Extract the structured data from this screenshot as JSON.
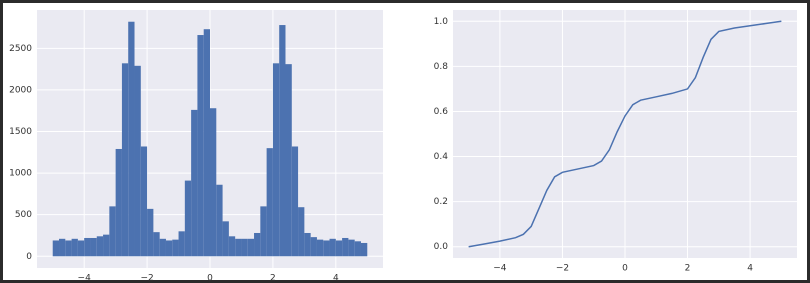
{
  "chart_data": [
    {
      "type": "histogram",
      "color": "#4c72b0",
      "grid": true,
      "bins": [
        -5,
        -4.8,
        -4.6,
        -4.4,
        -4.2,
        -4,
        -3.8,
        -3.6,
        -3.4,
        -3.2,
        -3,
        -2.8,
        -2.6,
        -2.4,
        -2.2,
        -2,
        -1.8,
        -1.6,
        -1.4,
        -1.2,
        -1,
        -0.8,
        -0.6,
        -0.4,
        -0.2,
        0,
        0.2,
        0.4,
        0.6,
        0.8,
        1,
        1.2,
        1.4,
        1.6,
        1.8,
        2,
        2.2,
        2.4,
        2.6,
        2.8,
        3,
        3.2,
        3.4,
        3.6,
        3.8,
        4,
        4.2,
        4.4,
        4.6,
        4.8,
        5
      ],
      "values": [
        190,
        210,
        190,
        210,
        190,
        220,
        220,
        240,
        260,
        600,
        1290,
        2320,
        2820,
        2290,
        1320,
        570,
        290,
        210,
        190,
        200,
        300,
        910,
        1760,
        2660,
        2730,
        1780,
        860,
        420,
        240,
        210,
        210,
        210,
        280,
        600,
        1300,
        2320,
        2780,
        2310,
        1320,
        590,
        280,
        230,
        200,
        190,
        210,
        190,
        220,
        200,
        180,
        160
      ],
      "xlim": [
        -5.5,
        5.5
      ],
      "ylim": [
        -141,
        2961
      ],
      "xticks": [
        {
          "value": -4,
          "label": "−4"
        },
        {
          "value": -2,
          "label": "−2"
        },
        0,
        2,
        4
      ],
      "yticks": [
        0,
        500,
        1000,
        1500,
        2000,
        2500
      ]
    },
    {
      "type": "line",
      "grid": true,
      "x": [
        -5,
        -4.5,
        -4,
        -3.5,
        -3.25,
        -3,
        -2.75,
        -2.5,
        -2.25,
        -2,
        -1.5,
        -1,
        -0.75,
        -0.5,
        -0.25,
        0,
        0.25,
        0.5,
        1,
        1.5,
        2,
        2.25,
        2.5,
        2.75,
        3,
        3.5,
        4,
        4.5,
        5
      ],
      "series": [
        {
          "color": "#4c72b0",
          "values": [
            0,
            0.012,
            0.025,
            0.04,
            0.055,
            0.09,
            0.17,
            0.25,
            0.31,
            0.33,
            0.345,
            0.36,
            0.38,
            0.43,
            0.51,
            0.58,
            0.63,
            0.65,
            0.665,
            0.68,
            0.7,
            0.75,
            0.84,
            0.92,
            0.955,
            0.97,
            0.98,
            0.99,
            1.0
          ]
        }
      ],
      "xlim": [
        -5.5,
        5.5
      ],
      "ylim": [
        -0.05,
        1.05
      ],
      "xticks": [
        {
          "value": -4,
          "label": "−4"
        },
        {
          "value": -2,
          "label": "−2"
        },
        0,
        2,
        4
      ],
      "yticks": [
        {
          "value": 0,
          "label": "0.0"
        },
        0.2,
        0.4,
        0.6,
        0.8,
        {
          "value": 1,
          "label": "1.0"
        }
      ]
    }
  ]
}
